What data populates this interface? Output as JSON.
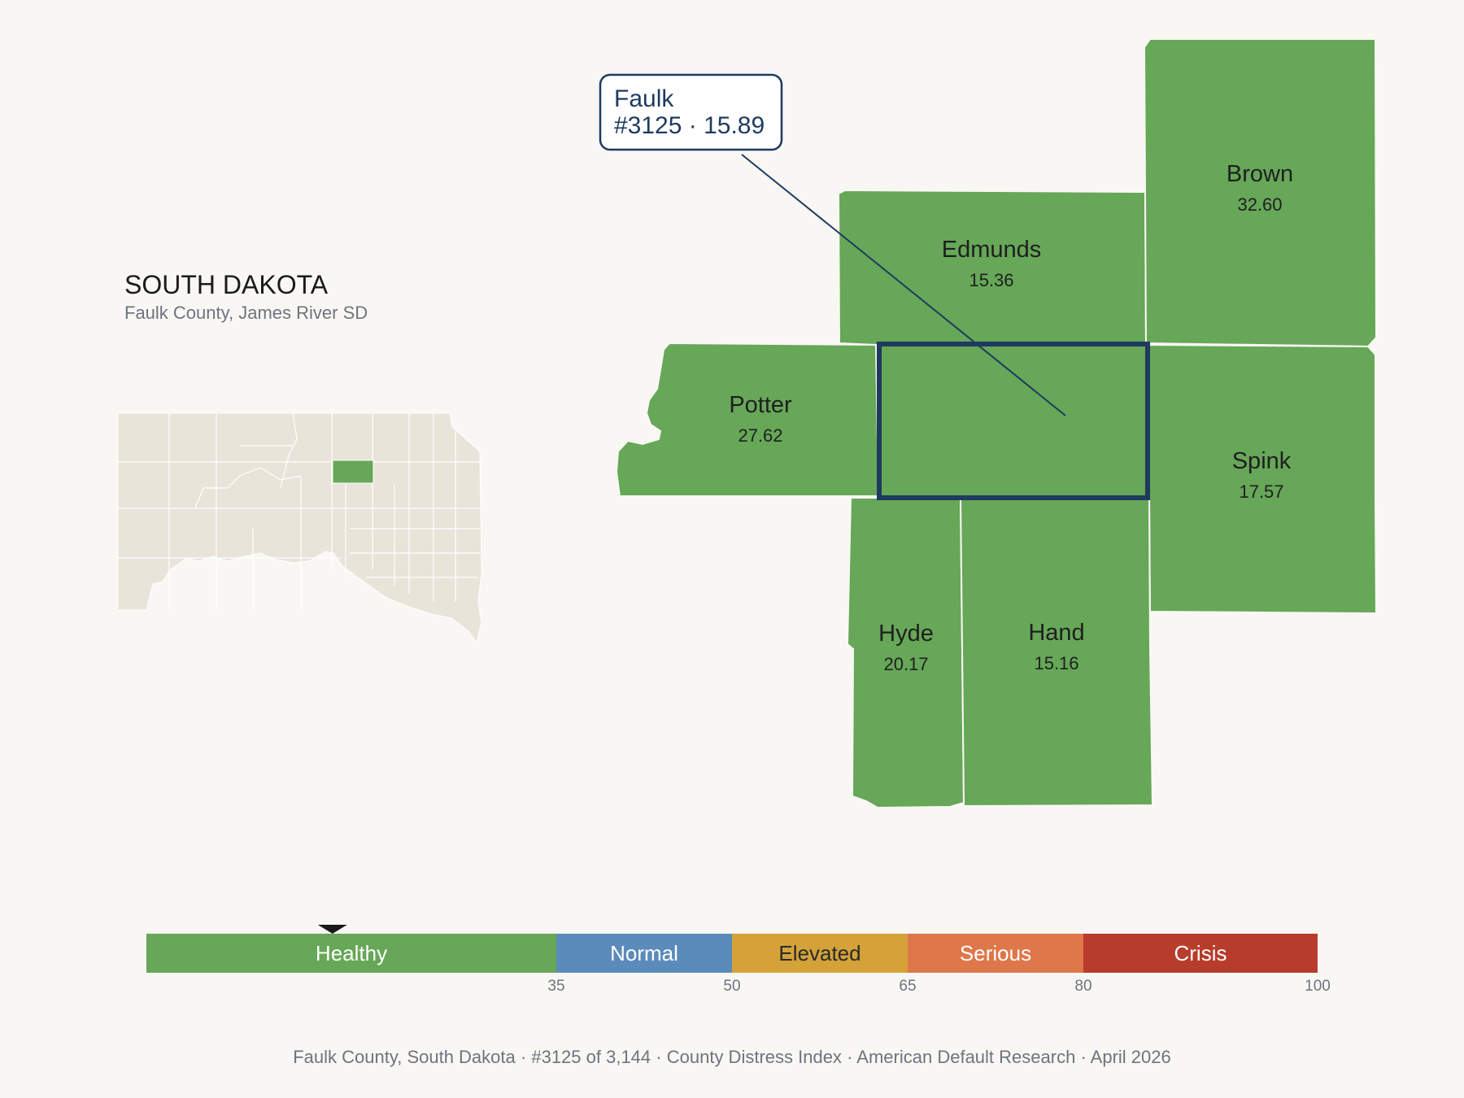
{
  "state": {
    "title": "SOUTH DAKOTA",
    "subtitle": "Faulk County, James River SD"
  },
  "callout": {
    "county": "Faulk",
    "detail": "#3125 · 15.89",
    "border_color": "#1e3a5f"
  },
  "counties": [
    {
      "name": "Edmunds",
      "value": "15.36"
    },
    {
      "name": "Brown",
      "value": "32.60"
    },
    {
      "name": "Potter",
      "value": "27.62"
    },
    {
      "name": "Spink",
      "value": "17.57"
    },
    {
      "name": "Hyde",
      "value": "20.17"
    },
    {
      "name": "Hand",
      "value": "15.16"
    }
  ],
  "colors": {
    "healthy": "#66a758",
    "normal": "#5b8bbb",
    "elevated": "#d4a239",
    "serious": "#de7749",
    "crisis": "#b83c2c",
    "highlight_border": "#1e3a5f",
    "locator_fill": "#e9e4da"
  },
  "legend": {
    "bands": [
      {
        "label": "Healthy",
        "from": 0,
        "to": 35
      },
      {
        "label": "Normal",
        "from": 35,
        "to": 50
      },
      {
        "label": "Elevated",
        "from": 50,
        "to": 65
      },
      {
        "label": "Serious",
        "from": 65,
        "to": 80
      },
      {
        "label": "Crisis",
        "from": 80,
        "to": 100
      }
    ],
    "ticks": [
      "35",
      "50",
      "65",
      "80",
      "100"
    ],
    "marker_value": 15.89
  },
  "footer": {
    "county": "Faulk County, South Dakota",
    "rank": "#3125 of 3,144",
    "index": "County Distress Index",
    "source": "American Default Research",
    "date": "April 2026"
  }
}
